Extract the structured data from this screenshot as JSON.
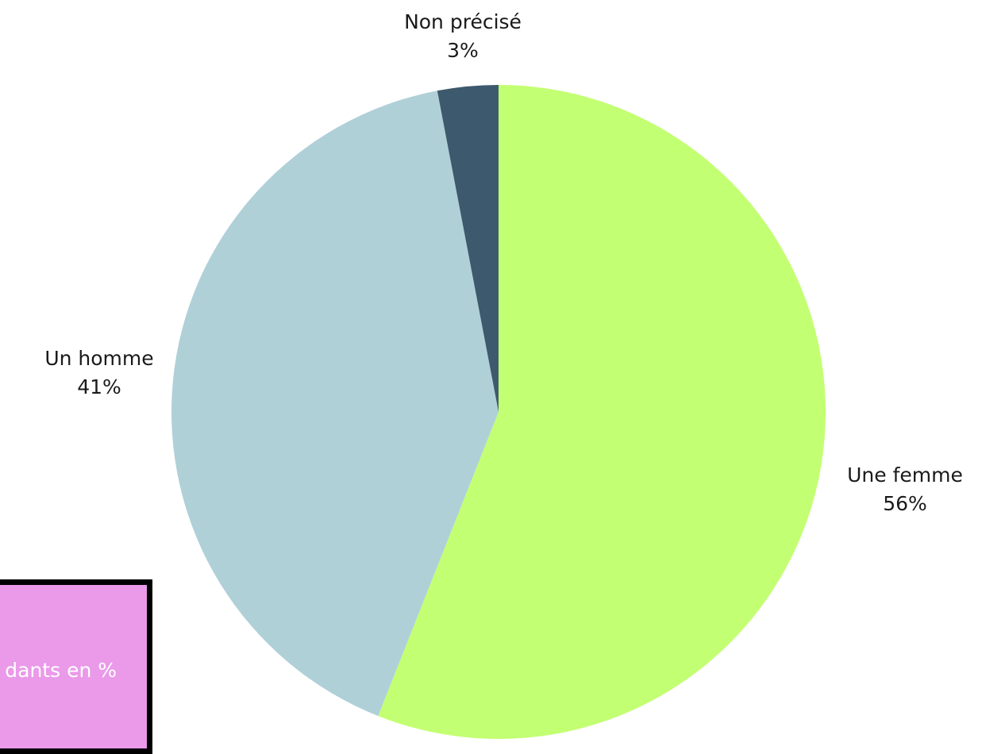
{
  "chart_data": {
    "type": "pie",
    "title": "",
    "slices": [
      {
        "label": "Une femme",
        "value": 56,
        "value_label": "56%",
        "color": "#c3ff72"
      },
      {
        "label": "Un homme",
        "value": 41,
        "value_label": "41%",
        "color": "#b0d0d8"
      },
      {
        "label": "Non précisé",
        "value": 3,
        "value_label": "3%",
        "color": "#3d596d"
      }
    ],
    "start": "12 o'clock",
    "direction": "clockwise",
    "legend": "none",
    "labels": "outside"
  },
  "callout": {
    "text": "rt des dants en %",
    "background": "#ea9ae9",
    "border": "#000000"
  }
}
